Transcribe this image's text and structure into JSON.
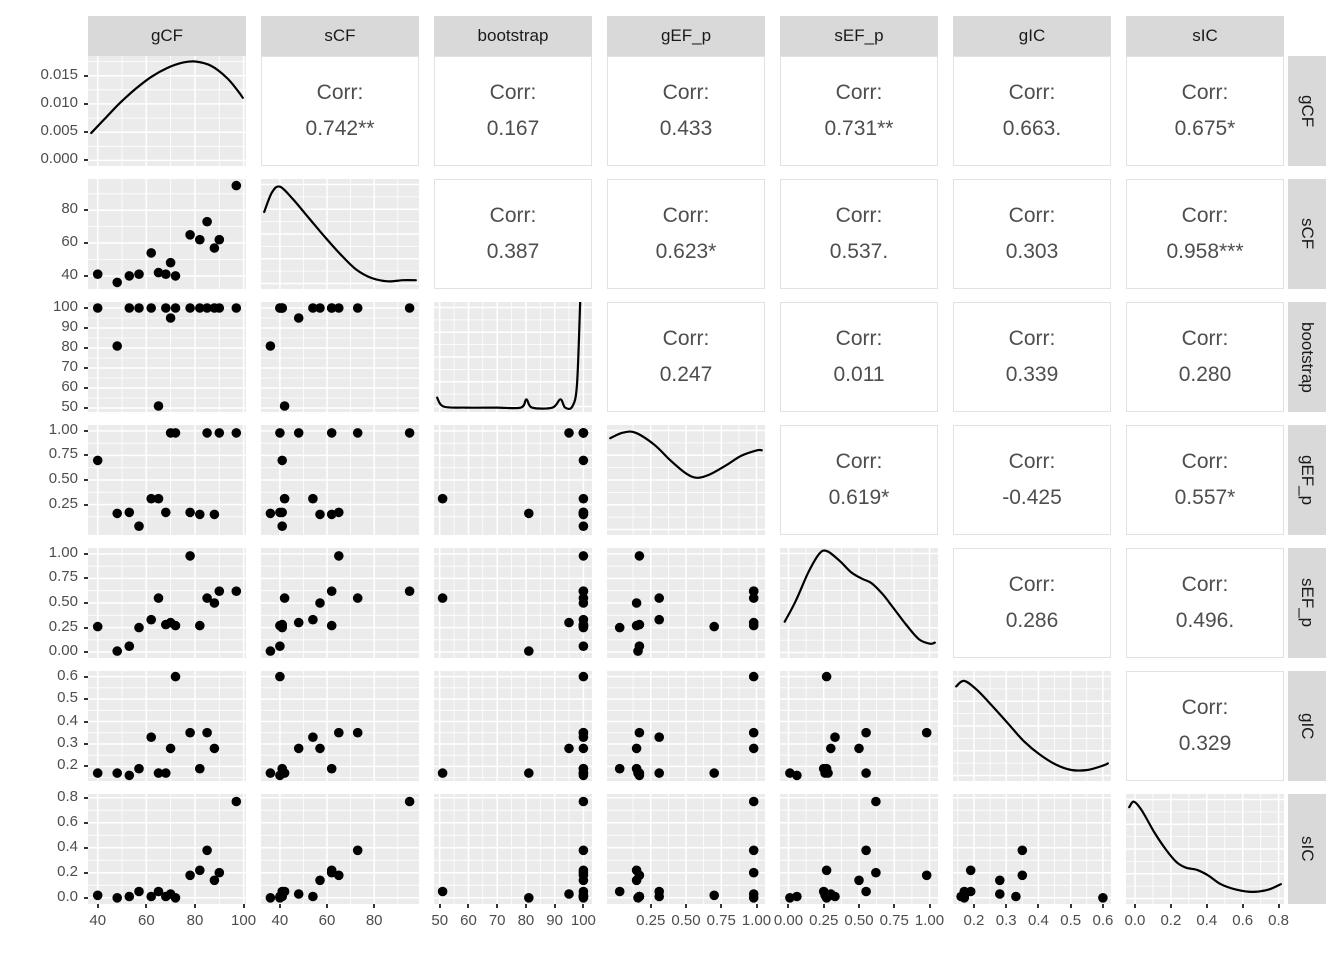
{
  "chart_data": {
    "type": "scatter",
    "subtype": "scatterplot-matrix-ggpairs",
    "title": "",
    "variables": [
      "gCF",
      "sCF",
      "bootstrap",
      "gEF_p",
      "sEF_p",
      "gIC",
      "sIC"
    ],
    "layout_note": "7x7 pairs plot: diagonal = density curves, lower triangle = scatter panels, upper triangle = correlation text, grey facet strips top and right",
    "corr_label": "Corr:",
    "correlations": {
      "gCF__sCF": "0.742**",
      "gCF__bootstrap": "0.167",
      "gCF__gEF_p": "0.433",
      "gCF__sEF_p": "0.731**",
      "gCF__gIC": "0.663.",
      "gCF__sIC": "0.675*",
      "sCF__bootstrap": "0.387",
      "sCF__gEF_p": "0.623*",
      "sCF__sEF_p": "0.537.",
      "sCF__gIC": "0.303",
      "sCF__sIC": "0.958***",
      "bootstrap__gEF_p": "0.247",
      "bootstrap__sEF_p": "0.011",
      "bootstrap__gIC": "0.339",
      "bootstrap__sIC": "0.280",
      "gEF_p__sEF_p": "0.619*",
      "gEF_p__gIC": "-0.425",
      "gEF_p__sIC": "0.557*",
      "sEF_p__gIC": "0.286",
      "sEF_p__sIC": "0.496.",
      "gIC__sIC": "0.329"
    },
    "observations": [
      {
        "gCF": 40,
        "sCF": 41,
        "bootstrap": 100,
        "gEF_p": 0.7,
        "sEF_p": 0.26,
        "gIC": 0.17,
        "sIC": 0.02
      },
      {
        "gCF": 48,
        "sCF": 36,
        "bootstrap": 81,
        "gEF_p": 0.16,
        "sEF_p": 0.01,
        "gIC": 0.17,
        "sIC": 0.0
      },
      {
        "gCF": 53,
        "sCF": 40,
        "bootstrap": 100,
        "gEF_p": 0.17,
        "sEF_p": 0.06,
        "gIC": 0.16,
        "sIC": 0.01
      },
      {
        "gCF": 57,
        "sCF": 41,
        "bootstrap": 100,
        "gEF_p": 0.03,
        "sEF_p": 0.25,
        "gIC": 0.19,
        "sIC": 0.05
      },
      {
        "gCF": 62,
        "sCF": 54,
        "bootstrap": 100,
        "gEF_p": 0.31,
        "sEF_p": 0.33,
        "gIC": 0.33,
        "sIC": 0.01
      },
      {
        "gCF": 65,
        "sCF": 42,
        "bootstrap": 51,
        "gEF_p": 0.31,
        "sEF_p": 0.55,
        "gIC": 0.17,
        "sIC": 0.05
      },
      {
        "gCF": 68,
        "sCF": 41,
        "bootstrap": 100,
        "gEF_p": 0.17,
        "sEF_p": 0.28,
        "gIC": 0.17,
        "sIC": 0.01
      },
      {
        "gCF": 70,
        "sCF": 48,
        "bootstrap": 95,
        "gEF_p": 0.98,
        "sEF_p": 0.3,
        "gIC": 0.28,
        "sIC": 0.03
      },
      {
        "gCF": 72,
        "sCF": 40,
        "bootstrap": 100,
        "gEF_p": 0.98,
        "sEF_p": 0.27,
        "gIC": 0.6,
        "sIC": 0.0
      },
      {
        "gCF": 78,
        "sCF": 65,
        "bootstrap": 100,
        "gEF_p": 0.17,
        "sEF_p": 0.98,
        "gIC": 0.35,
        "sIC": 0.18
      },
      {
        "gCF": 82,
        "sCF": 62,
        "bootstrap": 100,
        "gEF_p": 0.15,
        "sEF_p": 0.27,
        "gIC": 0.19,
        "sIC": 0.22
      },
      {
        "gCF": 85,
        "sCF": 73,
        "bootstrap": 100,
        "gEF_p": 0.98,
        "sEF_p": 0.55,
        "gIC": 0.35,
        "sIC": 0.38
      },
      {
        "gCF": 88,
        "sCF": 57,
        "bootstrap": 100,
        "gEF_p": 0.15,
        "sEF_p": 0.5,
        "gIC": 0.28,
        "sIC": 0.14
      },
      {
        "gCF": 90,
        "sCF": 62,
        "bootstrap": 100,
        "gEF_p": 0.98,
        "sEF_p": 0.62,
        "gIC": null,
        "sIC": 0.2
      },
      {
        "gCF": 97,
        "sCF": 95,
        "bootstrap": 100,
        "gEF_p": 0.98,
        "sEF_p": 0.62,
        "gIC": null,
        "sIC": 0.77
      }
    ],
    "axes": {
      "gCF": {
        "range": [
          36,
          101
        ],
        "ticks": [
          {
            "v": 40,
            "label": "40"
          },
          {
            "v": 60,
            "label": "60"
          },
          {
            "v": 80,
            "label": "80"
          },
          {
            "v": 100,
            "label": "100"
          }
        ]
      },
      "sCF": {
        "range": [
          32,
          99
        ],
        "ticks": [
          {
            "v": 40,
            "label": "40"
          },
          {
            "v": 60,
            "label": "60"
          },
          {
            "v": 80,
            "label": "80"
          }
        ]
      },
      "bootstrap": {
        "range": [
          48,
          103
        ],
        "ticks": [
          {
            "v": 50,
            "label": "50"
          },
          {
            "v": 60,
            "label": "60"
          },
          {
            "v": 70,
            "label": "70"
          },
          {
            "v": 80,
            "label": "80"
          },
          {
            "v": 90,
            "label": "90"
          },
          {
            "v": 100,
            "label": "100"
          }
        ]
      },
      "gEF_p": {
        "range": [
          -0.06,
          1.06
        ],
        "ticks": [
          {
            "v": 0.25,
            "label": "0.25"
          },
          {
            "v": 0.5,
            "label": "0.50"
          },
          {
            "v": 0.75,
            "label": "0.75"
          },
          {
            "v": 1.0,
            "label": "1.00"
          }
        ]
      },
      "sEF_p": {
        "range": [
          -0.06,
          1.06
        ],
        "ticks": [
          {
            "v": 0.0,
            "label": "0.00"
          },
          {
            "v": 0.25,
            "label": "0.25"
          },
          {
            "v": 0.5,
            "label": "0.50"
          },
          {
            "v": 0.75,
            "label": "0.75"
          },
          {
            "v": 1.0,
            "label": "1.00"
          }
        ]
      },
      "gIC": {
        "range": [
          0.135,
          0.625
        ],
        "ticks": [
          {
            "v": 0.2,
            "label": "0.2"
          },
          {
            "v": 0.3,
            "label": "0.3"
          },
          {
            "v": 0.4,
            "label": "0.4"
          },
          {
            "v": 0.5,
            "label": "0.5"
          },
          {
            "v": 0.6,
            "label": "0.6"
          }
        ]
      },
      "sIC": {
        "range": [
          -0.05,
          0.83
        ],
        "ticks": [
          {
            "v": 0.0,
            "label": "0.0"
          },
          {
            "v": 0.2,
            "label": "0.2"
          },
          {
            "v": 0.4,
            "label": "0.4"
          },
          {
            "v": 0.6,
            "label": "0.6"
          },
          {
            "v": 0.8,
            "label": "0.8"
          }
        ]
      }
    },
    "bottom_axis_tick_labels_by_column": {
      "gCF": [
        "40",
        "60",
        "80",
        "100"
      ],
      "sCF": [
        "40",
        "60",
        "80"
      ],
      "bootstrap": [
        "50",
        "60",
        "70",
        "80",
        "90",
        "100"
      ],
      "gEF_p": [
        "0.25",
        "0.50",
        "0.75",
        "1.00"
      ],
      "sEF_p": [
        "0.00",
        "0.25",
        "0.50",
        "0.75",
        "1.00"
      ],
      "gIC": [
        "0.2",
        "0.3",
        "0.4",
        "0.5",
        "0.6"
      ],
      "sIC": [
        "0.0",
        "0.2",
        "0.4",
        "0.6",
        "0.8"
      ]
    },
    "density_axis_gCF": {
      "range": [
        -0.001,
        0.0185
      ],
      "ticks": [
        {
          "v": 0.0,
          "label": "0.000"
        },
        {
          "v": 0.005,
          "label": "0.005"
        },
        {
          "v": 0.01,
          "label": "0.010"
        },
        {
          "v": 0.015,
          "label": "0.015"
        }
      ]
    },
    "densities": {
      "gCF": [
        [
          0.02,
          0.3
        ],
        [
          0.1,
          0.42
        ],
        [
          0.2,
          0.57
        ],
        [
          0.3,
          0.7
        ],
        [
          0.4,
          0.81
        ],
        [
          0.5,
          0.89
        ],
        [
          0.6,
          0.94
        ],
        [
          0.68,
          0.95
        ],
        [
          0.78,
          0.91
        ],
        [
          0.88,
          0.8
        ],
        [
          0.95,
          0.68
        ],
        [
          0.98,
          0.62
        ]
      ],
      "sCF": [
        [
          0.02,
          0.7
        ],
        [
          0.07,
          0.88
        ],
        [
          0.12,
          0.93
        ],
        [
          0.2,
          0.82
        ],
        [
          0.3,
          0.65
        ],
        [
          0.4,
          0.48
        ],
        [
          0.5,
          0.32
        ],
        [
          0.6,
          0.18
        ],
        [
          0.7,
          0.1
        ],
        [
          0.8,
          0.07
        ],
        [
          0.9,
          0.08
        ],
        [
          0.98,
          0.08
        ]
      ],
      "bootstrap": [
        [
          0.02,
          0.13
        ],
        [
          0.06,
          0.05
        ],
        [
          0.2,
          0.04
        ],
        [
          0.4,
          0.04
        ],
        [
          0.55,
          0.04
        ],
        [
          0.585,
          0.115
        ],
        [
          0.62,
          0.04
        ],
        [
          0.75,
          0.04
        ],
        [
          0.8,
          0.115
        ],
        [
          0.83,
          0.04
        ],
        [
          0.875,
          0.05
        ],
        [
          0.905,
          0.25
        ],
        [
          0.925,
          1.0
        ]
      ],
      "gEF_p": [
        [
          0.02,
          0.88
        ],
        [
          0.1,
          0.93
        ],
        [
          0.18,
          0.93
        ],
        [
          0.3,
          0.82
        ],
        [
          0.4,
          0.68
        ],
        [
          0.5,
          0.56
        ],
        [
          0.57,
          0.52
        ],
        [
          0.65,
          0.55
        ],
        [
          0.75,
          0.63
        ],
        [
          0.85,
          0.72
        ],
        [
          0.95,
          0.77
        ],
        [
          0.98,
          0.77
        ]
      ],
      "sEF_p": [
        [
          0.03,
          0.33
        ],
        [
          0.1,
          0.52
        ],
        [
          0.18,
          0.78
        ],
        [
          0.25,
          0.95
        ],
        [
          0.3,
          0.97
        ],
        [
          0.38,
          0.88
        ],
        [
          0.45,
          0.78
        ],
        [
          0.52,
          0.72
        ],
        [
          0.58,
          0.68
        ],
        [
          0.65,
          0.58
        ],
        [
          0.72,
          0.45
        ],
        [
          0.8,
          0.3
        ],
        [
          0.88,
          0.17
        ],
        [
          0.95,
          0.13
        ],
        [
          0.98,
          0.14
        ]
      ],
      "gIC": [
        [
          0.02,
          0.86
        ],
        [
          0.07,
          0.91
        ],
        [
          0.15,
          0.83
        ],
        [
          0.25,
          0.68
        ],
        [
          0.35,
          0.52
        ],
        [
          0.45,
          0.36
        ],
        [
          0.55,
          0.24
        ],
        [
          0.65,
          0.15
        ],
        [
          0.75,
          0.1
        ],
        [
          0.85,
          0.1
        ],
        [
          0.95,
          0.14
        ],
        [
          0.98,
          0.16
        ]
      ],
      "sIC": [
        [
          0.02,
          0.88
        ],
        [
          0.05,
          0.93
        ],
        [
          0.1,
          0.85
        ],
        [
          0.18,
          0.65
        ],
        [
          0.25,
          0.5
        ],
        [
          0.32,
          0.38
        ],
        [
          0.38,
          0.33
        ],
        [
          0.45,
          0.31
        ],
        [
          0.52,
          0.26
        ],
        [
          0.6,
          0.18
        ],
        [
          0.7,
          0.13
        ],
        [
          0.8,
          0.11
        ],
        [
          0.9,
          0.13
        ],
        [
          0.98,
          0.18
        ]
      ]
    },
    "colors": {
      "background": "#FFFFFF",
      "panel_bg": "#EBEBEB",
      "grid": "#FFFFFF",
      "strip_bg": "#D9D9D9",
      "strip_text": "#1A1A1A",
      "point": "#000000",
      "density_line": "#000000",
      "corr_text": "#4E4E4E",
      "corr_panel_border": "#E2E2E2",
      "tick_text": "#4D4D4D",
      "tick_mark": "#333333"
    }
  }
}
